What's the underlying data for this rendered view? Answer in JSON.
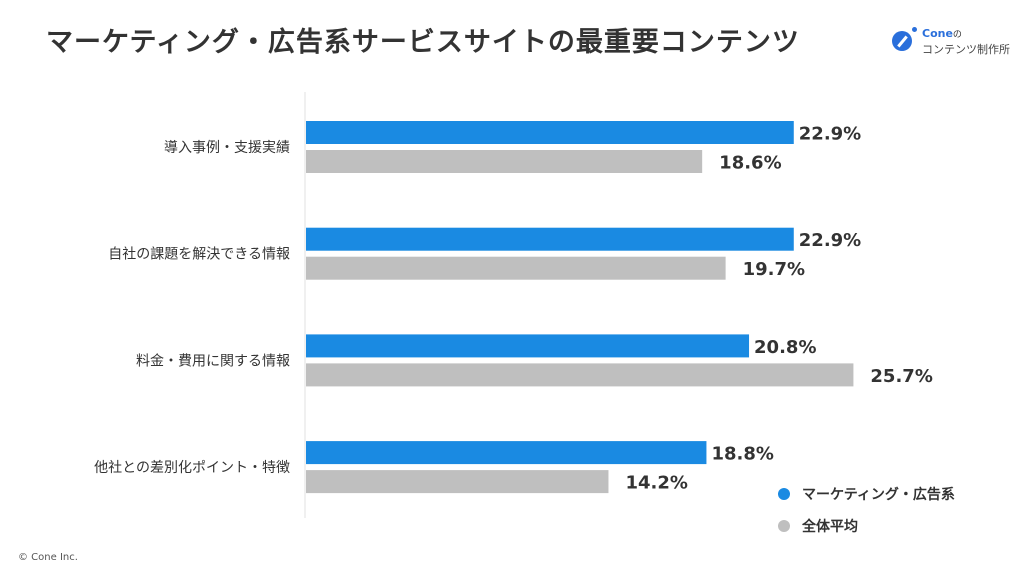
{
  "title": "マーケティング・広告系サービスサイトの最重要コンテンツ",
  "logo": {
    "top": "Cone",
    "top_suffix": "の",
    "bottom": "コンテンツ制作所"
  },
  "footer": "© Cone Inc.",
  "chart_data": {
    "type": "bar",
    "orientation": "horizontal",
    "title": "マーケティング・広告系サービスサイトの最重要コンテンツ",
    "categories": [
      "導入事例・支援実績",
      "自社の課題を解決できる情報",
      "料金・費用に関する情報",
      "他社との差別化ポイント・特徴"
    ],
    "series": [
      {
        "name": "マーケティング・広告系",
        "color": "#1a8ae2",
        "values": [
          22.9,
          22.9,
          20.8,
          18.8
        ],
        "labels": [
          "22.9%",
          "22.9%",
          "20.8%",
          "18.8%"
        ]
      },
      {
        "name": "全体平均",
        "color": "#bfbfbf",
        "values": [
          18.6,
          19.7,
          25.7,
          14.2
        ],
        "labels": [
          "18.6%",
          "19.7%",
          "25.7%",
          "14.2%"
        ]
      }
    ],
    "xlim": [
      0,
      30
    ],
    "grid": false,
    "legend": "bottom-right"
  }
}
